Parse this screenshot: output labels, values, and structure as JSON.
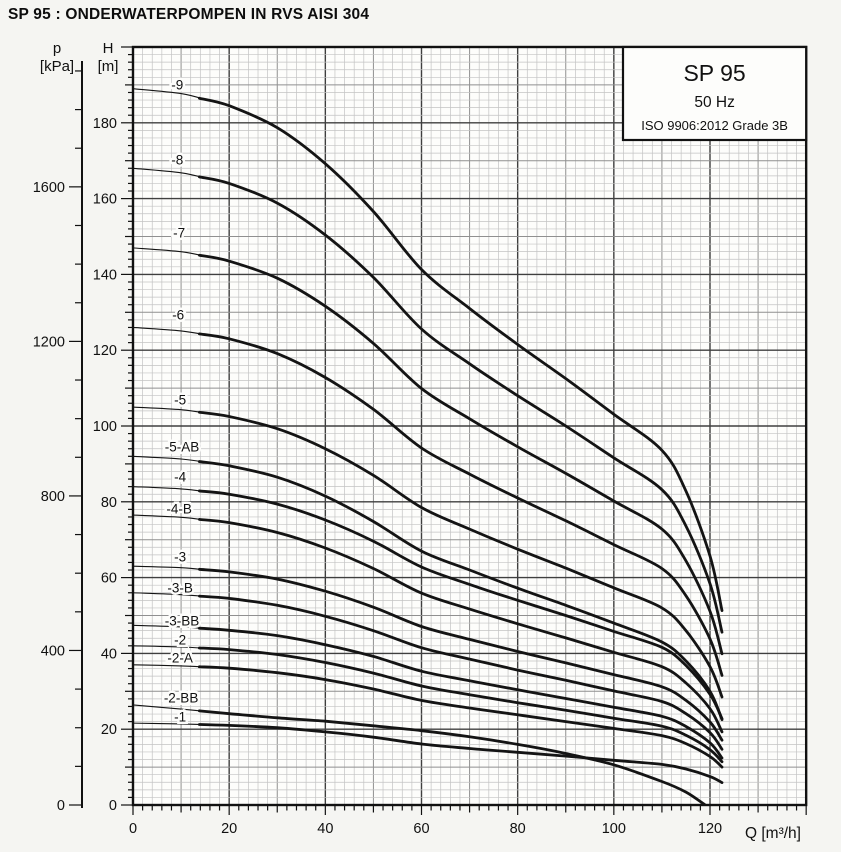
{
  "page": {
    "title": "SP 95 : ONDERWATERPOMPEN IN RVS AISI 304"
  },
  "info_box": {
    "model": "SP 95",
    "frequency": "50 Hz",
    "standard": "ISO 9906:2012 Grade 3B"
  },
  "colors": {
    "curve": "#141414",
    "frame": "#111111",
    "grid_minor": "#c3c3c3",
    "grid_medium": "#909090",
    "grid_major": "#3f3f3f",
    "page_background": "#f5f5f2",
    "plot_background": "#fdfdfb",
    "text": "#111111"
  },
  "chart_data": {
    "type": "line",
    "title": "SP 95 submersible pump head-flow curves",
    "legend_position": "top-right box",
    "grid": true,
    "x_axis": {
      "label": "Q [m³/h]",
      "min": 0,
      "max": 140,
      "major_ticks": [
        0,
        20,
        40,
        60,
        80,
        100,
        120
      ],
      "medium_step": 10,
      "minor_step": 2
    },
    "y_axis": {
      "label_symbol": "H",
      "label_unit": "[m]",
      "min": 0,
      "max": 200,
      "major_ticks": [
        0,
        20,
        40,
        60,
        80,
        100,
        120,
        140,
        160,
        180
      ],
      "medium_step": 10,
      "minor_step": 2
    },
    "pressure_axis": {
      "label_symbol": "p",
      "label_unit": "[kPa]",
      "min": 0,
      "max": 1900,
      "major_ticks": [
        0,
        400,
        800,
        1200,
        1600
      ],
      "minor_step": 100,
      "kpa_per_m": 9.81
    },
    "series": [
      {
        "name": "SP 95-9",
        "label": "-9",
        "label_pos": [
          9.2,
          190.0
        ],
        "points": [
          [
            0,
            189
          ],
          [
            10,
            187.7
          ],
          [
            20,
            184.5
          ],
          [
            30,
            178.7
          ],
          [
            40,
            169.2
          ],
          [
            50,
            156.6
          ],
          [
            60,
            141.3
          ],
          [
            70,
            131
          ],
          [
            80,
            121.5
          ],
          [
            90,
            112.5
          ],
          [
            100,
            103.1
          ],
          [
            110,
            93.6
          ],
          [
            115,
            82.8
          ],
          [
            120,
            65.7
          ],
          [
            122.5,
            51.3
          ]
        ]
      },
      {
        "name": "SP 95-8",
        "label": "-8",
        "label_pos": [
          9.2,
          170.2
        ],
        "points": [
          [
            0,
            168
          ],
          [
            10,
            166.8
          ],
          [
            20,
            164
          ],
          [
            30,
            158.8
          ],
          [
            40,
            150.4
          ],
          [
            50,
            139.2
          ],
          [
            60,
            125.6
          ],
          [
            70,
            116.4
          ],
          [
            80,
            108
          ],
          [
            90,
            100
          ],
          [
            100,
            91.6
          ],
          [
            110,
            83.2
          ],
          [
            115,
            73.6
          ],
          [
            120,
            58.4
          ],
          [
            122.5,
            45.6
          ]
        ]
      },
      {
        "name": "SP 95-7",
        "label": "-7",
        "label_pos": [
          9.6,
          150.9
        ],
        "points": [
          [
            0,
            147
          ],
          [
            10,
            146
          ],
          [
            20,
            143.5
          ],
          [
            30,
            139
          ],
          [
            40,
            131.6
          ],
          [
            50,
            121.8
          ],
          [
            60,
            109.9
          ],
          [
            70,
            101.9
          ],
          [
            80,
            94.5
          ],
          [
            90,
            87.5
          ],
          [
            100,
            80.2
          ],
          [
            110,
            72.8
          ],
          [
            115,
            64.4
          ],
          [
            120,
            51.1
          ],
          [
            122.5,
            39.9
          ]
        ]
      },
      {
        "name": "SP 95-6",
        "label": "-6",
        "label_pos": [
          9.4,
          129.3
        ],
        "points": [
          [
            0,
            126
          ],
          [
            10,
            125.1
          ],
          [
            20,
            123
          ],
          [
            30,
            119.1
          ],
          [
            40,
            112.8
          ],
          [
            50,
            104.4
          ],
          [
            60,
            94.2
          ],
          [
            70,
            87.3
          ],
          [
            80,
            81
          ],
          [
            90,
            75
          ],
          [
            100,
            68.7
          ],
          [
            110,
            62.4
          ],
          [
            115,
            55.2
          ],
          [
            120,
            43.8
          ],
          [
            122.5,
            34.2
          ]
        ]
      },
      {
        "name": "SP 95-5",
        "label": "-5",
        "label_pos": [
          9.8,
          106.9
        ],
        "points": [
          [
            0,
            105
          ],
          [
            10,
            104.3
          ],
          [
            20,
            102.5
          ],
          [
            30,
            99.3
          ],
          [
            40,
            94
          ],
          [
            50,
            87
          ],
          [
            60,
            78.5
          ],
          [
            70,
            72.8
          ],
          [
            80,
            67.5
          ],
          [
            90,
            62.5
          ],
          [
            100,
            57.3
          ],
          [
            110,
            52
          ],
          [
            115,
            46
          ],
          [
            120,
            36.5
          ],
          [
            122.5,
            28.5
          ]
        ]
      },
      {
        "name": "SP 95-5-AB",
        "label": "-5-AB",
        "label_pos": [
          10.2,
          94.5
        ],
        "points": [
          [
            0,
            92
          ],
          [
            10,
            91.3
          ],
          [
            20,
            89.5
          ],
          [
            30,
            86.5
          ],
          [
            40,
            81.5
          ],
          [
            50,
            74.8
          ],
          [
            60,
            67
          ],
          [
            70,
            62
          ],
          [
            80,
            57.2
          ],
          [
            90,
            52.7
          ],
          [
            100,
            48
          ],
          [
            110,
            43
          ],
          [
            115,
            38
          ],
          [
            120,
            30
          ],
          [
            122.5,
            22.5
          ]
        ]
      },
      {
        "name": "SP 95-4",
        "label": "-4",
        "label_pos": [
          9.8,
          86.5
        ],
        "points": [
          [
            0,
            84
          ],
          [
            10,
            83.4
          ],
          [
            20,
            82
          ],
          [
            30,
            79.4
          ],
          [
            40,
            75.2
          ],
          [
            50,
            69.6
          ],
          [
            60,
            62.8
          ],
          [
            70,
            58.2
          ],
          [
            80,
            54
          ],
          [
            90,
            50
          ],
          [
            100,
            45.8
          ],
          [
            110,
            41.6
          ],
          [
            115,
            36.8
          ],
          [
            120,
            29.2
          ],
          [
            122.5,
            22.8
          ]
        ]
      },
      {
        "name": "SP 95-4-B",
        "label": "-4-B",
        "label_pos": [
          9.6,
          78.1
        ],
        "points": [
          [
            0,
            76.5
          ],
          [
            10,
            75.9
          ],
          [
            20,
            74.5
          ],
          [
            30,
            71.9
          ],
          [
            40,
            67.8
          ],
          [
            50,
            62.4
          ],
          [
            60,
            55.9
          ],
          [
            70,
            51.7
          ],
          [
            80,
            47.8
          ],
          [
            90,
            44.1
          ],
          [
            100,
            40.3
          ],
          [
            110,
            36.5
          ],
          [
            115,
            32.2
          ],
          [
            120,
            25.4
          ],
          [
            122.5,
            19.3
          ]
        ]
      },
      {
        "name": "SP 95-3",
        "label": "-3",
        "label_pos": [
          9.8,
          65.4
        ],
        "points": [
          [
            0,
            63
          ],
          [
            10,
            62.6
          ],
          [
            20,
            61.5
          ],
          [
            30,
            59.6
          ],
          [
            40,
            56.4
          ],
          [
            50,
            52.2
          ],
          [
            60,
            47.1
          ],
          [
            70,
            43.7
          ],
          [
            80,
            40.5
          ],
          [
            90,
            37.5
          ],
          [
            100,
            34.4
          ],
          [
            110,
            31.2
          ],
          [
            115,
            27.6
          ],
          [
            120,
            21.9
          ],
          [
            122.5,
            17.1
          ]
        ]
      },
      {
        "name": "SP 95-3-B",
        "label": "-3-B",
        "label_pos": [
          9.8,
          57.3
        ],
        "points": [
          [
            0,
            56
          ],
          [
            10,
            55.5
          ],
          [
            20,
            54.5
          ],
          [
            30,
            52.7
          ],
          [
            40,
            49.8
          ],
          [
            50,
            46
          ],
          [
            60,
            41.5
          ],
          [
            70,
            38.5
          ],
          [
            80,
            35.6
          ],
          [
            90,
            32.9
          ],
          [
            100,
            30.1
          ],
          [
            110,
            27.3
          ],
          [
            115,
            24.1
          ],
          [
            120,
            19.1
          ],
          [
            122.5,
            14.7
          ]
        ]
      },
      {
        "name": "SP 95-3-BB",
        "label": "-3-BB",
        "label_pos": [
          10.2,
          48.5
        ],
        "points": [
          [
            0,
            47.4
          ],
          [
            10,
            47
          ],
          [
            20,
            46.1
          ],
          [
            30,
            44.7
          ],
          [
            40,
            42.3
          ],
          [
            50,
            39.2
          ],
          [
            60,
            35.3
          ],
          [
            70,
            32.8
          ],
          [
            80,
            30.4
          ],
          [
            90,
            28.1
          ],
          [
            100,
            25.8
          ],
          [
            110,
            23.4
          ],
          [
            115,
            20.7
          ],
          [
            120,
            16.4
          ],
          [
            122.5,
            12.4
          ]
        ]
      },
      {
        "name": "SP 95-2",
        "label": "-2",
        "label_pos": [
          9.8,
          43.5
        ],
        "points": [
          [
            0,
            42
          ],
          [
            10,
            41.7
          ],
          [
            20,
            41
          ],
          [
            30,
            39.7
          ],
          [
            40,
            37.6
          ],
          [
            50,
            34.8
          ],
          [
            60,
            31.4
          ],
          [
            70,
            29.1
          ],
          [
            80,
            27
          ],
          [
            90,
            25
          ],
          [
            100,
            22.9
          ],
          [
            110,
            20.8
          ],
          [
            115,
            18.4
          ],
          [
            120,
            14.6
          ],
          [
            122.5,
            11.4
          ]
        ]
      },
      {
        "name": "SP 95-2-A",
        "label": "-2-A",
        "label_pos": [
          9.8,
          38.8
        ],
        "points": [
          [
            0,
            37
          ],
          [
            10,
            36.7
          ],
          [
            20,
            36.1
          ],
          [
            30,
            34.9
          ],
          [
            40,
            33.1
          ],
          [
            50,
            30.6
          ],
          [
            60,
            27.6
          ],
          [
            70,
            25.6
          ],
          [
            80,
            23.8
          ],
          [
            90,
            22
          ],
          [
            100,
            20.2
          ],
          [
            110,
            18.3
          ],
          [
            115,
            16.2
          ],
          [
            120,
            12.8
          ],
          [
            122.5,
            10
          ]
        ]
      },
      {
        "name": "SP 95-2-BB",
        "label": "-2-BB",
        "label_pos": [
          10.0,
          28.2
        ],
        "points": [
          [
            0,
            26.4
          ],
          [
            10,
            25.3
          ],
          [
            20,
            24.1
          ],
          [
            30,
            23
          ],
          [
            40,
            22.1
          ],
          [
            50,
            20.9
          ],
          [
            60,
            19.6
          ],
          [
            70,
            18
          ],
          [
            80,
            16
          ],
          [
            90,
            13.6
          ],
          [
            100,
            10.6
          ],
          [
            110,
            6.2
          ],
          [
            115,
            3.4
          ],
          [
            119,
            0
          ]
        ]
      },
      {
        "name": "SP 95-1",
        "label": "-1",
        "label_pos": [
          9.8,
          23.2
        ],
        "points": [
          [
            0,
            21.6
          ],
          [
            10,
            21.4
          ],
          [
            20,
            21
          ],
          [
            30,
            20.4
          ],
          [
            40,
            19.3
          ],
          [
            50,
            17.9
          ],
          [
            60,
            16.1
          ],
          [
            70,
            14.9
          ],
          [
            80,
            13.9
          ],
          [
            90,
            12.9
          ],
          [
            100,
            11.8
          ],
          [
            110,
            10.7
          ],
          [
            115,
            9.5
          ],
          [
            120,
            7.5
          ],
          [
            122.5,
            5.9
          ]
        ]
      }
    ]
  }
}
